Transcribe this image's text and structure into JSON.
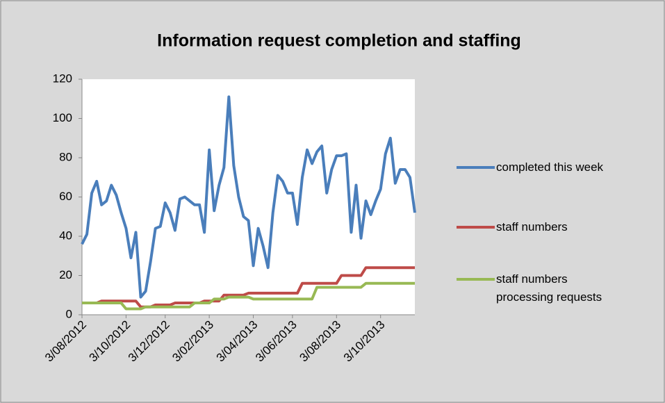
{
  "chart_data": {
    "type": "line",
    "title": "Information request completion and staffing",
    "categories": [
      "3/08/2012",
      null,
      null,
      null,
      null,
      null,
      null,
      null,
      null,
      "3/10/2012",
      null,
      null,
      null,
      null,
      null,
      null,
      null,
      "3/12/2012",
      null,
      null,
      null,
      null,
      null,
      null,
      null,
      null,
      "3/02/2013",
      null,
      null,
      null,
      null,
      null,
      null,
      null,
      null,
      "3/04/2013",
      null,
      null,
      null,
      null,
      null,
      null,
      null,
      "3/06/2013",
      null,
      null,
      null,
      null,
      null,
      null,
      null,
      null,
      "3/08/2013",
      null,
      null,
      null,
      null,
      null,
      null,
      null,
      null,
      "3/10/2013",
      null,
      null,
      null,
      null,
      null,
      null,
      null
    ],
    "series": [
      {
        "name": "completed this week",
        "color": "#4a7ebb",
        "values": [
          36,
          41,
          62,
          68,
          56,
          58,
          66,
          61,
          52,
          44,
          29,
          42,
          9,
          12,
          27,
          44,
          45,
          57,
          52,
          43,
          59,
          60,
          58,
          56,
          56,
          42,
          84,
          53,
          66,
          75,
          111,
          76,
          60,
          50,
          48,
          25,
          44,
          35,
          24,
          52,
          71,
          68,
          62,
          62,
          46,
          70,
          84,
          77,
          83,
          86,
          62,
          74,
          81,
          81,
          82,
          42,
          66,
          39,
          58,
          51,
          58,
          64,
          82,
          90,
          67,
          74,
          74,
          70,
          52
        ]
      },
      {
        "name": "staff numbers",
        "color": "#be4b48",
        "values": [
          6,
          6,
          6,
          6,
          7,
          7,
          7,
          7,
          7,
          7,
          7,
          7,
          4,
          4,
          4,
          5,
          5,
          5,
          5,
          6,
          6,
          6,
          6,
          6,
          6,
          7,
          7,
          7,
          7,
          10,
          10,
          10,
          10,
          10,
          11,
          11,
          11,
          11,
          11,
          11,
          11,
          11,
          11,
          11,
          11,
          16,
          16,
          16,
          16,
          16,
          16,
          16,
          16,
          20,
          20,
          20,
          20,
          20,
          24,
          24,
          24,
          24,
          24,
          24,
          24,
          24,
          24,
          24,
          24
        ]
      },
      {
        "name": "staff numbers processing requests",
        "color": "#98b954",
        "values": [
          6,
          6,
          6,
          6,
          6,
          6,
          6,
          6,
          6,
          3,
          3,
          3,
          3,
          4,
          4,
          4,
          4,
          4,
          4,
          4,
          4,
          4,
          4,
          6,
          6,
          6,
          6,
          8,
          8,
          8,
          9,
          9,
          9,
          9,
          9,
          8,
          8,
          8,
          8,
          8,
          8,
          8,
          8,
          8,
          8,
          8,
          8,
          8,
          14,
          14,
          14,
          14,
          14,
          14,
          14,
          14,
          14,
          14,
          16,
          16,
          16,
          16,
          16,
          16,
          16,
          16,
          16,
          16,
          16
        ]
      }
    ],
    "ylim": [
      0,
      120
    ],
    "yticks": [
      0,
      20,
      40,
      60,
      80,
      100,
      120
    ],
    "grid": false,
    "legend": "right"
  }
}
